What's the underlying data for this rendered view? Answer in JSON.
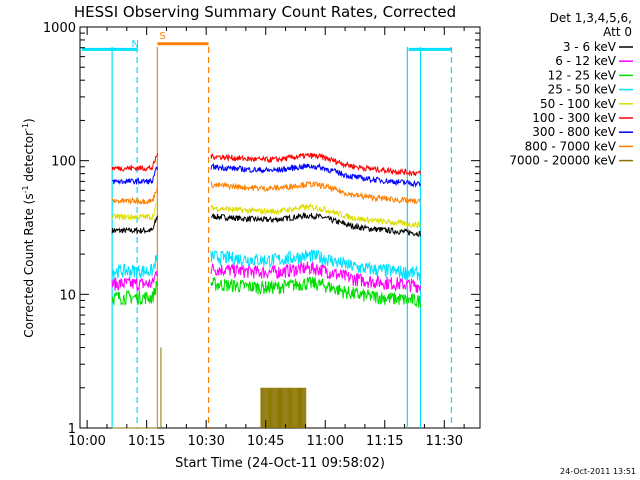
{
  "chart_data": {
    "type": "line",
    "title": "HESSI Observing Summary Count Rates, Corrected",
    "xlabel": "Start Time (24-Oct-11 09:58:02)",
    "ylabel_main": "Corrected Count Rate (s",
    "ylabel_sup1": "-1",
    "ylabel_mid": " detector",
    "ylabel_sup2": "-1",
    "ylabel_end": ")",
    "y_scale": "log",
    "xlim_minutes": [
      9.97,
      11.65
    ],
    "ylim": [
      1,
      1000
    ],
    "x_ticks": [
      "10:00",
      "10:15",
      "10:30",
      "10:45",
      "11:00",
      "11:15",
      "11:30"
    ],
    "x_tick_hours": [
      10.0,
      10.25,
      10.5,
      10.75,
      11.0,
      11.25,
      11.5
    ],
    "y_ticks": [
      "1",
      "10",
      "100",
      "1000"
    ],
    "y_tick_values": [
      1,
      10,
      100,
      1000
    ],
    "legend_header_1": "Det 1,3,4,5,6,",
    "legend_header_2": "Att 0",
    "legend_position": "right",
    "flag_markers": [
      {
        "label": "S",
        "hour": 10.32,
        "color": "#ff8000"
      },
      {
        "label": "N",
        "hour": 10.22,
        "color": "#00d0ff"
      }
    ],
    "series": [
      {
        "name": "3 - 6 keV",
        "color": "#000000",
        "seg1": 30,
        "seg2": 32
      },
      {
        "name": "6 - 12 keV",
        "color": "#ff00ff",
        "seg1": 12,
        "seg2": 13
      },
      {
        "name": "12 - 25 keV",
        "color": "#00dd00",
        "seg1": 9.5,
        "seg2": 10
      },
      {
        "name": "25 - 50 keV",
        "color": "#00e0ff",
        "seg1": 15,
        "seg2": 16
      },
      {
        "name": "50 - 100 keV",
        "color": "#dddd00",
        "seg1": 38,
        "seg2": 37
      },
      {
        "name": "100 - 300 keV",
        "color": "#ff0000",
        "seg1": 88,
        "seg2": 90
      },
      {
        "name": "300 - 800 keV",
        "color": "#0000ff",
        "seg1": 70,
        "seg2": 75
      },
      {
        "name": "800 - 7000 keV",
        "color": "#ff8000",
        "seg1": 50,
        "seg2": 55
      },
      {
        "name": "7000 - 20000 keV",
        "color": "#8b7500",
        "seg1": 1,
        "seg2": 1
      }
    ],
    "timestamp": "24-Oct-2011 13:51"
  }
}
